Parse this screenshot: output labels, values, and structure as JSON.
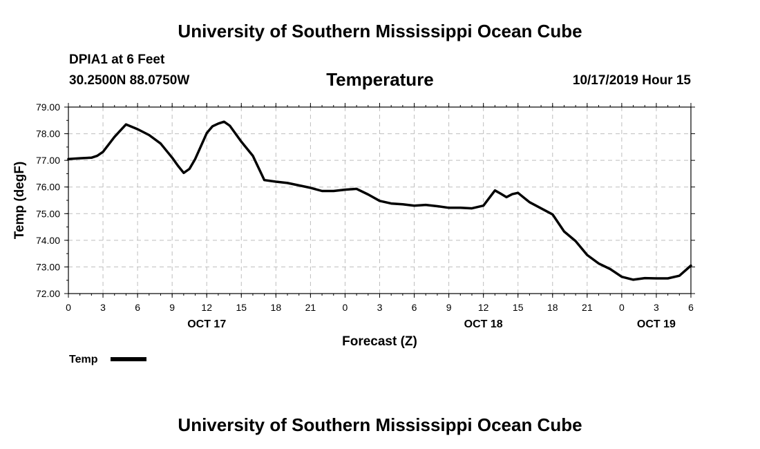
{
  "header": {
    "title": "University of Southern Mississippi Ocean Cube",
    "station": "DPIA1 at 6 Feet",
    "coords": "30.2500N 88.0750W",
    "variable": "Temperature",
    "timestamp": "10/17/2019 Hour 15"
  },
  "footer": {
    "title": "University of Southern Mississippi Ocean Cube"
  },
  "chart_data": {
    "type": "line",
    "title": "Temperature",
    "xlabel": "Forecast (Z)",
    "ylabel": "Temp (degF)",
    "ylim": [
      72,
      79
    ],
    "xlim": [
      0,
      54
    ],
    "y_ticks": [
      "72.00",
      "73.00",
      "74.00",
      "75.00",
      "76.00",
      "77.00",
      "78.00",
      "79.00"
    ],
    "x_ticks": [
      "0",
      "3",
      "6",
      "9",
      "12",
      "15",
      "18",
      "21",
      "0",
      "3",
      "6",
      "9",
      "12",
      "15",
      "18",
      "21",
      "0",
      "3",
      "6"
    ],
    "day_labels": [
      {
        "label": "OCT 17",
        "at_hour": 12
      },
      {
        "label": "OCT 18",
        "at_hour": 36
      },
      {
        "label": "OCT 19",
        "at_hour": 51
      }
    ],
    "grid": true,
    "line_color": "#000000",
    "series": [
      {
        "name": "Temp",
        "x": [
          0,
          1,
          2,
          2.5,
          3,
          4,
          5,
          6,
          7,
          8,
          9,
          9.5,
          10,
          10.5,
          11,
          12,
          12.5,
          13,
          13.5,
          14,
          15,
          16,
          17,
          18,
          19,
          20,
          21,
          22,
          23,
          24,
          25,
          26,
          27,
          28,
          29,
          30,
          31,
          32,
          33,
          34,
          35,
          36,
          37,
          37.5,
          38,
          38.5,
          39,
          40,
          41,
          42,
          43,
          44,
          45,
          46,
          47,
          48,
          49,
          50,
          51,
          52,
          53,
          54
        ],
        "y": [
          77.05,
          77.08,
          77.1,
          77.17,
          77.32,
          77.88,
          78.35,
          78.17,
          77.95,
          77.63,
          77.1,
          76.8,
          76.53,
          76.68,
          77.05,
          78.02,
          78.28,
          78.38,
          78.45,
          78.3,
          77.7,
          77.17,
          76.26,
          76.2,
          76.15,
          76.06,
          75.97,
          75.85,
          75.85,
          75.9,
          75.93,
          75.72,
          75.48,
          75.38,
          75.35,
          75.3,
          75.33,
          75.28,
          75.22,
          75.22,
          75.2,
          75.3,
          75.87,
          75.75,
          75.62,
          75.73,
          75.78,
          75.43,
          75.2,
          74.97,
          74.33,
          73.97,
          73.45,
          73.13,
          72.92,
          72.63,
          72.52,
          72.58,
          72.57,
          72.57,
          72.67,
          73.05
        ]
      }
    ],
    "legend": {
      "label": "Temp",
      "placement": "bottom-left"
    }
  }
}
